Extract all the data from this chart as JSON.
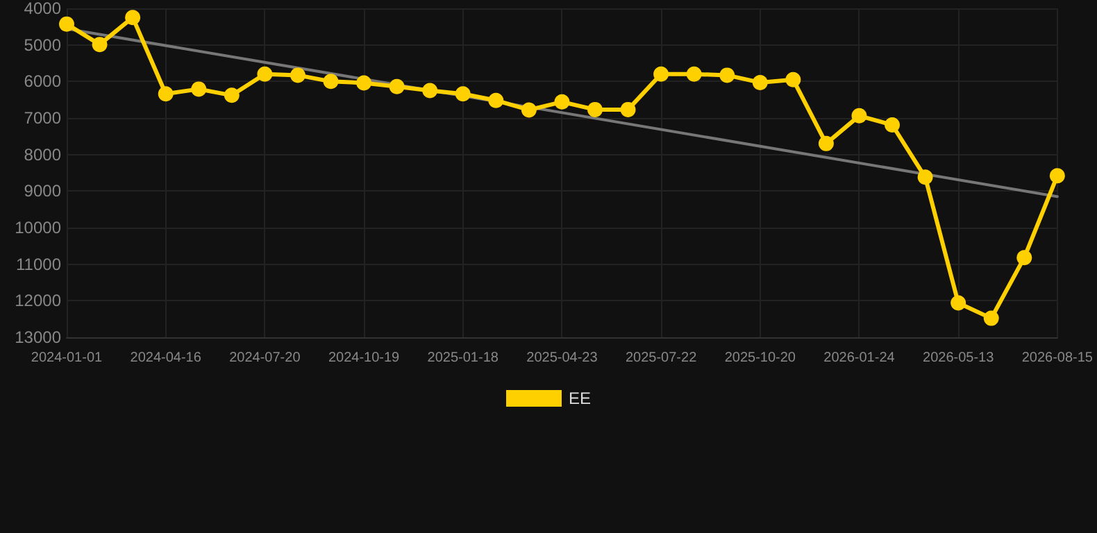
{
  "chart_data": {
    "type": "line",
    "categories": [
      "2024-01-01",
      null,
      null,
      "2024-04-16",
      null,
      null,
      "2024-07-20",
      null,
      null,
      "2024-10-19",
      null,
      null,
      "2025-01-18",
      null,
      null,
      "2025-04-23",
      null,
      null,
      "2025-07-22",
      null,
      null,
      "2025-10-20",
      null,
      null,
      "2026-01-24",
      null,
      null,
      "2026-05-13",
      null,
      null,
      "2026-08-15"
    ],
    "series": [
      {
        "name": "EE",
        "color": "#ffd000",
        "marker": "circle",
        "values": [
          4430,
          4990,
          4250,
          6340,
          6210,
          6380,
          5800,
          5830,
          6000,
          6040,
          6140,
          6250,
          6340,
          6520,
          6780,
          6560,
          6770,
          6770,
          5800,
          5800,
          5830,
          6030,
          5950,
          7700,
          6940,
          7190,
          8620,
          12060,
          12480,
          10820,
          8580
        ]
      },
      {
        "type": "line",
        "color": "#777777",
        "marker": "none",
        "values": [
          4560,
          null,
          null,
          null,
          null,
          null,
          null,
          null,
          null,
          null,
          null,
          null,
          null,
          null,
          null,
          null,
          null,
          null,
          null,
          null,
          null,
          null,
          null,
          null,
          null,
          null,
          null,
          null,
          null,
          null,
          9150
        ]
      }
    ],
    "ylim": [
      13000,
      4000
    ],
    "yticks": [
      4000,
      5000,
      6000,
      7000,
      8000,
      9000,
      10000,
      11000,
      12000,
      13000
    ],
    "grid": true,
    "legend": "bottom",
    "line_style": "solid"
  }
}
